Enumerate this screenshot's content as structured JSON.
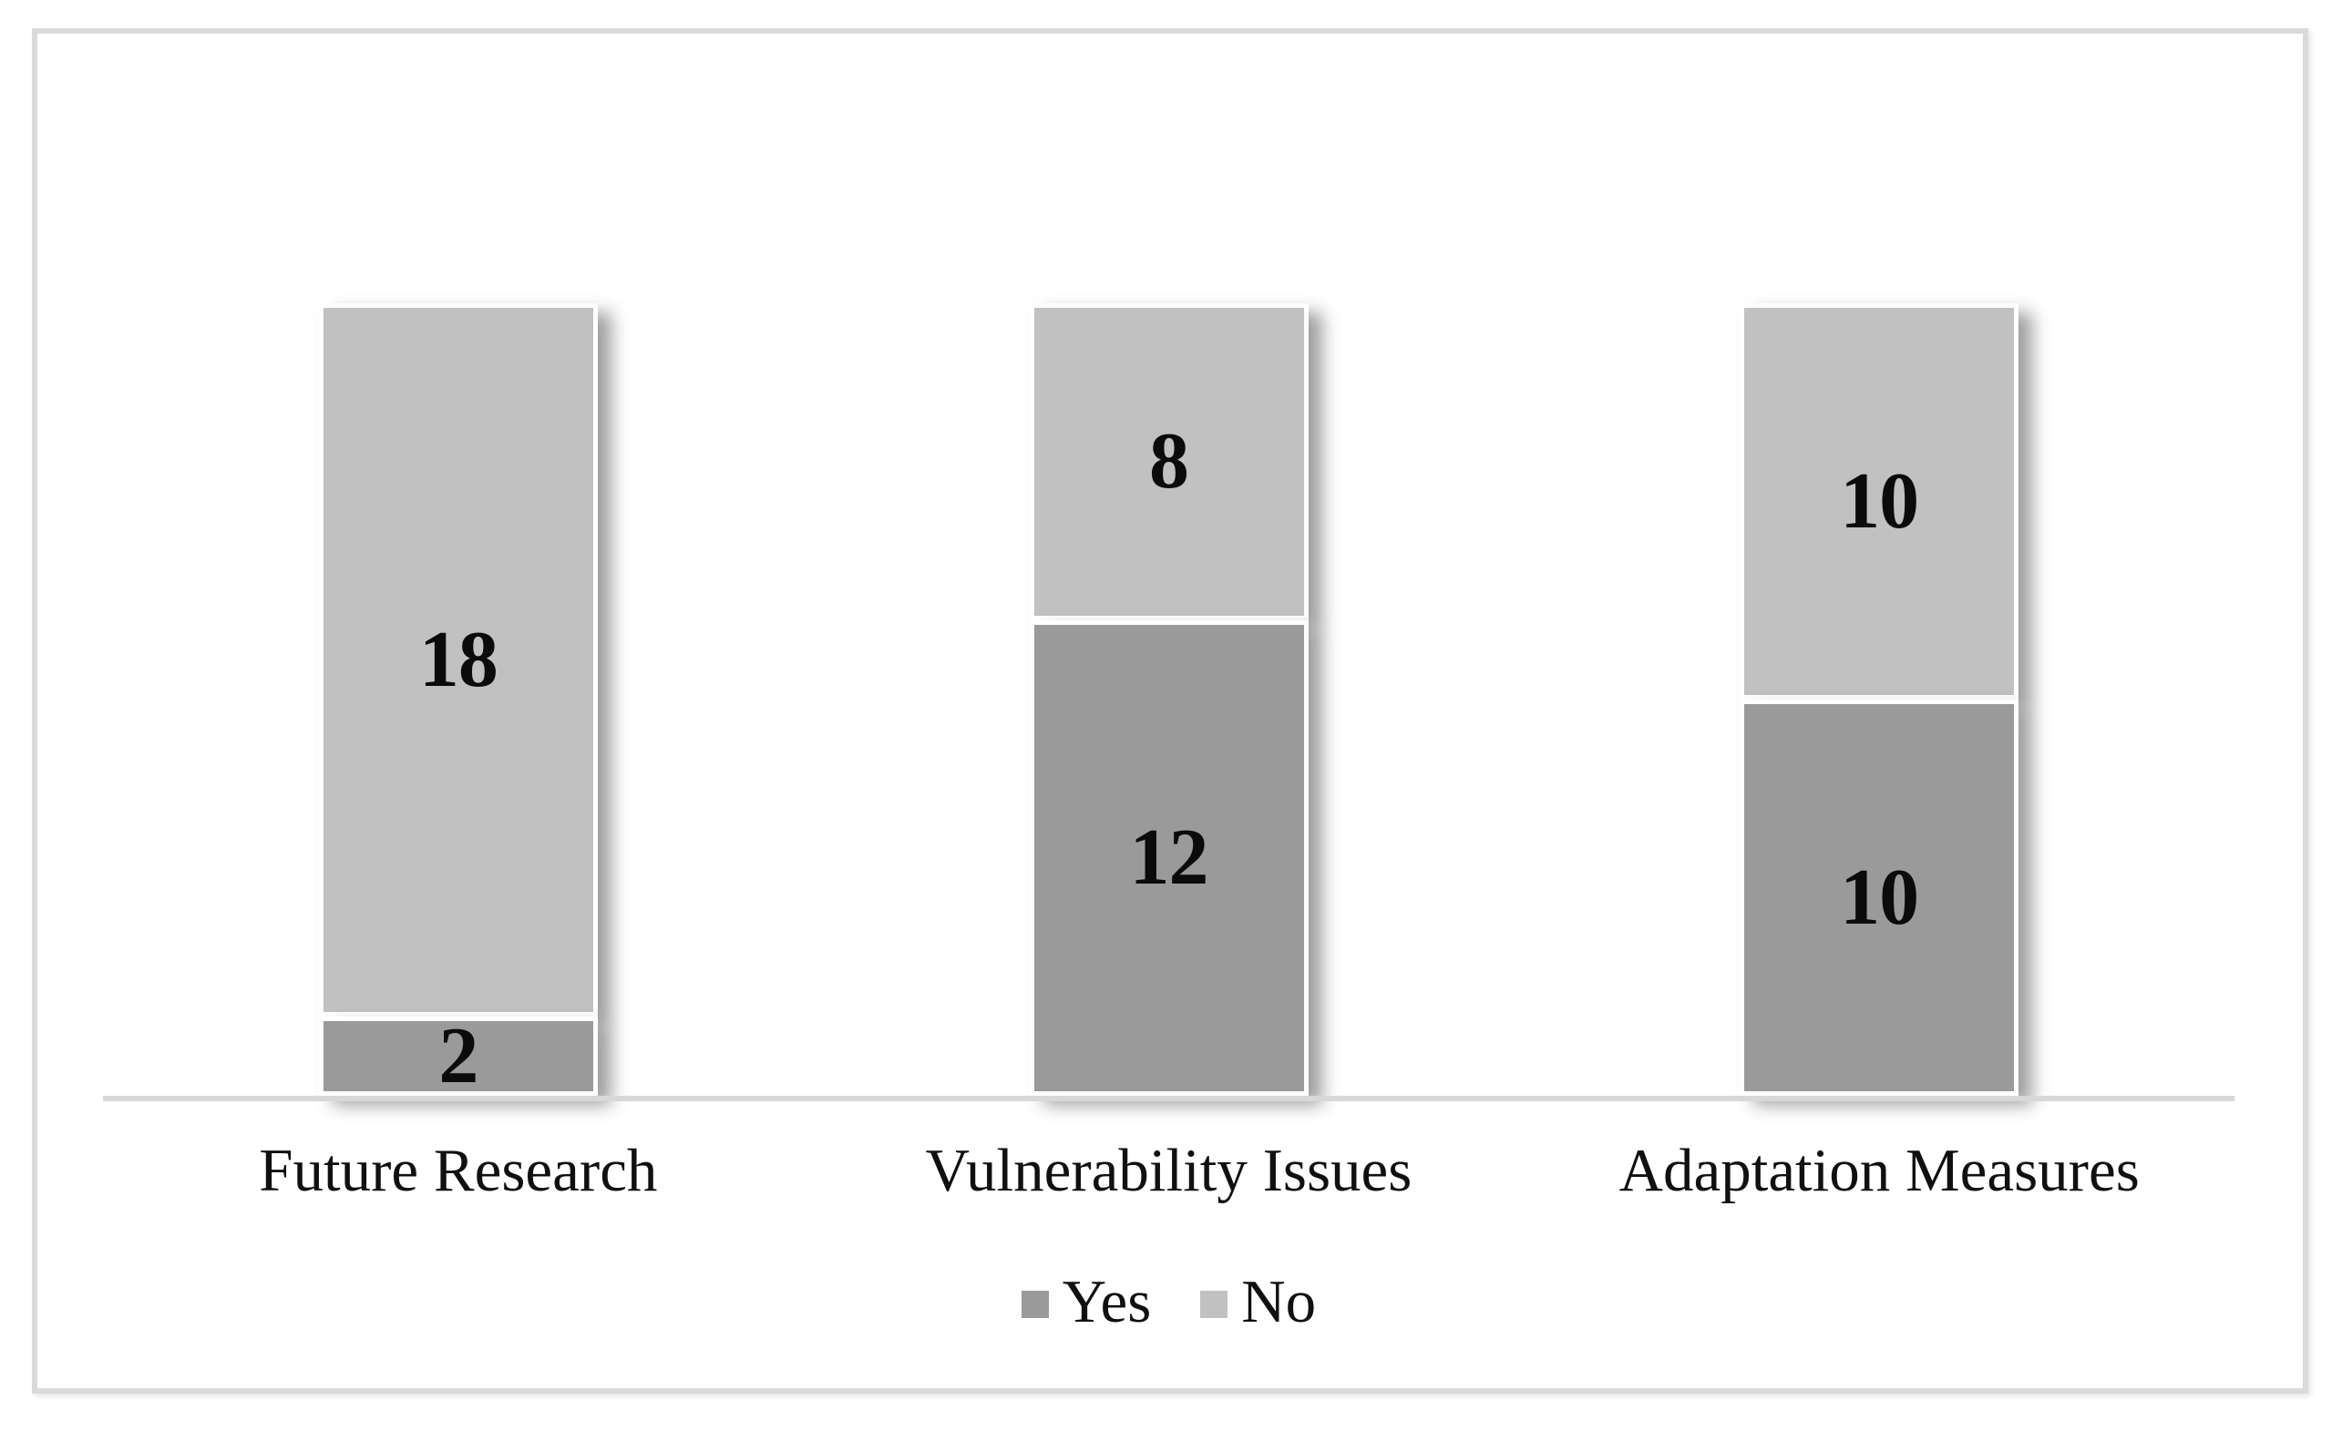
{
  "chart_data": {
    "type": "bar",
    "variant": "stacked-column",
    "title": "",
    "xlabel": "",
    "ylabel": "",
    "categories": [
      "Future Research",
      "Vulnerability Issues",
      "Adaptation Measures"
    ],
    "series": [
      {
        "name": "Yes",
        "values": [
          2,
          12,
          10
        ],
        "color": "#9a9a9a"
      },
      {
        "name": "No",
        "values": [
          18,
          8,
          10
        ],
        "color": "#c1c1c1"
      }
    ],
    "stack_total": 20,
    "ylim": [
      0,
      20
    ],
    "gridlines": false,
    "data_labels": "center",
    "legend_position": "bottom",
    "axis_line_color": "#d8d8d8",
    "label_color": "#0b0b0b"
  }
}
